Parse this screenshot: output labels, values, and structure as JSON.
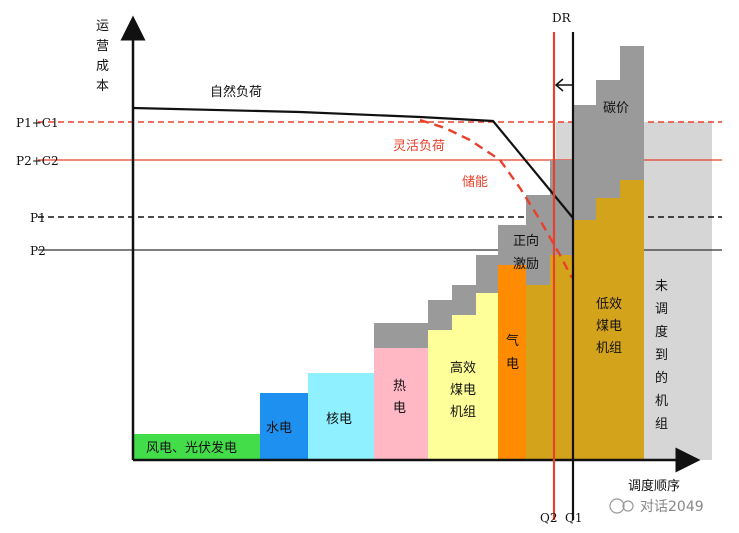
{
  "axes": {
    "y_label": [
      "运",
      "营",
      "成",
      "本"
    ],
    "x_label": "调度顺序"
  },
  "price_levels": [
    {
      "label": "P1+C1"
    },
    {
      "label": "P2+C2"
    },
    {
      "label": "P1"
    },
    {
      "label": "P2"
    }
  ],
  "curves": {
    "natural_load": "自然负荷",
    "flexible_load": "灵活负荷",
    "storage": "储能"
  },
  "dr": {
    "label": "DR",
    "q2": "Q2",
    "q1": "Q1"
  },
  "blocks": {
    "wind_solar": "风电、光伏发电",
    "hydro": "水电",
    "nuclear": "核电",
    "heat": [
      "热",
      "电"
    ],
    "high_eff_coal": [
      "高效",
      "煤电",
      "机组"
    ],
    "gas": [
      "气",
      "电"
    ],
    "low_eff_coal": [
      "低效",
      "煤电",
      "机组"
    ],
    "unscheduled": [
      "未",
      "调",
      "度",
      "到",
      "的",
      "机",
      "组"
    ],
    "incentive": [
      "正向",
      "激励"
    ],
    "carbon": "碳价"
  },
  "watermark": "对话2049",
  "colors": {
    "wind": "#44dd4a",
    "hydro": "#1e90f0",
    "nuclear": "#8ff0ff",
    "heat": "#ffb8c4",
    "high_eff_coal": "#ffff99",
    "gas": "#ff8c00",
    "low_eff_coal": "#d4a31c",
    "unscheduled": "#d6d6d6",
    "carbon_gray": "#9a9a9a",
    "red": "#e8412b",
    "black": "#111111"
  }
}
